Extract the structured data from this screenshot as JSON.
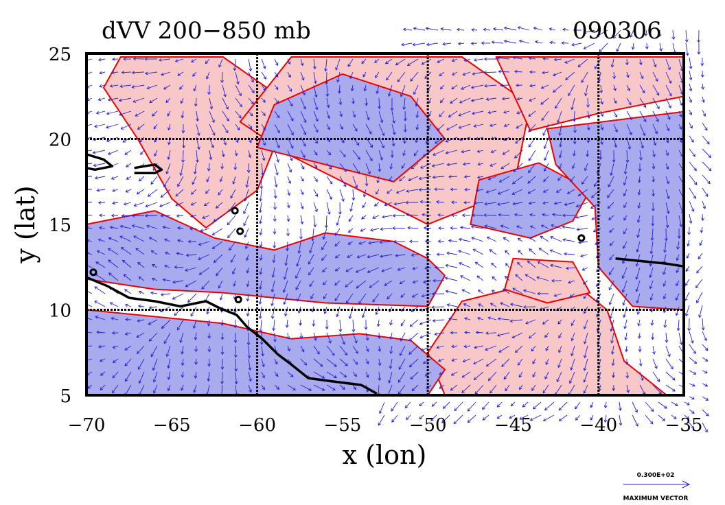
{
  "chart_data": {
    "type": "contour-vector-map",
    "title": "dVV 200−850 mb",
    "date_label": "090306",
    "xlabel": "x (lon)",
    "ylabel": "y (lat)",
    "xlim": [
      -70,
      -35
    ],
    "ylim": [
      5,
      25
    ],
    "x_ticks": [
      -70,
      -65,
      -60,
      -55,
      -50,
      -45,
      -40,
      -35
    ],
    "x_tick_labels": [
      "−70",
      "−65",
      "−60",
      "−55",
      "−50",
      "−45",
      "−40",
      "−35"
    ],
    "y_ticks": [
      5,
      10,
      15,
      20,
      25
    ],
    "y_tick_labels": [
      "5",
      "10",
      "15",
      "20",
      "25"
    ],
    "grid_x": [
      -60,
      -50,
      -40
    ],
    "grid_y": [
      10,
      20
    ],
    "positive_fill": "#f8c8c8",
    "negative_fill": "#aaaaee",
    "contour_color": "#ee0000",
    "vector_color": "#2020dd",
    "coast_color": "#000000",
    "legend": {
      "value_label": "0.300E+02",
      "caption": "MAXIMUM VECTOR"
    },
    "regions": [
      {
        "sign": "positive",
        "polygon": [
          [
            -68,
            24.8
          ],
          [
            -62,
            24.8
          ],
          [
            -58,
            22
          ],
          [
            -60,
            17
          ],
          [
            -63,
            14.8
          ],
          [
            -65,
            16.5
          ],
          [
            -67,
            20
          ],
          [
            -69,
            23
          ]
        ]
      },
      {
        "sign": "positive",
        "polygon": [
          [
            -58,
            24.8
          ],
          [
            -48,
            24.8
          ],
          [
            -44,
            22
          ],
          [
            -45,
            17
          ],
          [
            -50,
            15
          ],
          [
            -54,
            17
          ],
          [
            -58,
            19
          ],
          [
            -61,
            21
          ]
        ]
      },
      {
        "sign": "positive",
        "polygon": [
          [
            -46,
            24.8
          ],
          [
            -35,
            24.8
          ],
          [
            -35,
            22.5
          ],
          [
            -40,
            21.5
          ],
          [
            -44,
            20.5
          ]
        ]
      },
      {
        "sign": "positive",
        "polygon": [
          [
            -48,
            10.5
          ],
          [
            -42,
            12
          ],
          [
            -39.5,
            10
          ],
          [
            -38.5,
            7
          ],
          [
            -36,
            5
          ],
          [
            -49,
            5
          ],
          [
            -50,
            7.5
          ]
        ]
      },
      {
        "sign": "positive",
        "polygon": [
          [
            -45,
            13
          ],
          [
            -41.5,
            12.8
          ],
          [
            -40.5,
            11
          ],
          [
            -43,
            10.4
          ],
          [
            -45.5,
            11.2
          ]
        ]
      },
      {
        "sign": "positive",
        "polygon": [
          [
            -36.5,
            21
          ],
          [
            -35,
            21
          ],
          [
            -35,
            18.5
          ],
          [
            -36.5,
            19
          ]
        ]
      },
      {
        "sign": "negative",
        "polygon": [
          [
            -70,
            15
          ],
          [
            -66,
            15.8
          ],
          [
            -62.5,
            14.2
          ],
          [
            -59,
            13.5
          ],
          [
            -56,
            14.5
          ],
          [
            -52,
            14
          ],
          [
            -50,
            13
          ],
          [
            -49,
            12
          ],
          [
            -50,
            10.2
          ],
          [
            -56,
            10.4
          ],
          [
            -62,
            11
          ],
          [
            -66,
            11.2
          ],
          [
            -70,
            11.8
          ]
        ]
      },
      {
        "sign": "negative",
        "polygon": [
          [
            -70,
            10
          ],
          [
            -62,
            9.2
          ],
          [
            -58,
            8.3
          ],
          [
            -54,
            8.6
          ],
          [
            -51,
            8.2
          ],
          [
            -49,
            6.5
          ],
          [
            -50,
            5
          ],
          [
            -70,
            5
          ]
        ]
      },
      {
        "sign": "negative",
        "polygon": [
          [
            -59,
            22
          ],
          [
            -55,
            23.8
          ],
          [
            -51,
            22.5
          ],
          [
            -49,
            20
          ],
          [
            -52,
            17.5
          ],
          [
            -56,
            18.5
          ],
          [
            -60,
            19.5
          ]
        ]
      },
      {
        "sign": "negative",
        "polygon": [
          [
            -47.5,
            15
          ],
          [
            -44,
            14.2
          ],
          [
            -41.5,
            15.2
          ],
          [
            -40.5,
            17
          ],
          [
            -43.5,
            18.6
          ],
          [
            -47,
            17.6
          ]
        ]
      },
      {
        "sign": "negative",
        "polygon": [
          [
            -43,
            20.6
          ],
          [
            -35,
            21.6
          ],
          [
            -35,
            10
          ],
          [
            -38,
            10.2
          ],
          [
            -40,
            12.5
          ],
          [
            -40.2,
            16
          ],
          [
            -42.5,
            18.5
          ]
        ]
      }
    ],
    "coastlines": [
      [
        [
          -70,
          11.9
        ],
        [
          -68.8,
          11.4
        ],
        [
          -67.5,
          10.7
        ],
        [
          -66,
          10.5
        ],
        [
          -64.5,
          10.2
        ],
        [
          -63,
          10.5
        ],
        [
          -62.2,
          10.1
        ],
        [
          -61.2,
          9.7
        ],
        [
          -60.6,
          9.0
        ],
        [
          -59.7,
          8.3
        ],
        [
          -58.8,
          7.4
        ],
        [
          -58,
          6.8
        ],
        [
          -57,
          6.0
        ],
        [
          -55.5,
          5.8
        ],
        [
          -53.9,
          5.6
        ],
        [
          -53,
          5.1
        ]
      ],
      [
        [
          -70,
          19.1
        ],
        [
          -69,
          18.8
        ],
        [
          -68.5,
          18.4
        ],
        [
          -69.5,
          18.2
        ],
        [
          -70,
          18.3
        ]
      ],
      [
        [
          -67.2,
          18.3
        ],
        [
          -66,
          18.5
        ],
        [
          -65.6,
          18.2
        ],
        [
          -66,
          18.0
        ],
        [
          -67.2,
          18.0
        ]
      ],
      [
        [
          -39,
          13.0
        ],
        [
          -36,
          12.7
        ],
        [
          -33.5,
          12.3
        ]
      ]
    ],
    "islands": [
      [
        -61.3,
        15.8
      ],
      [
        -61.0,
        14.6
      ],
      [
        -69.6,
        12.2
      ],
      [
        -61.1,
        10.6
      ],
      [
        -41.0,
        14.2
      ]
    ]
  }
}
